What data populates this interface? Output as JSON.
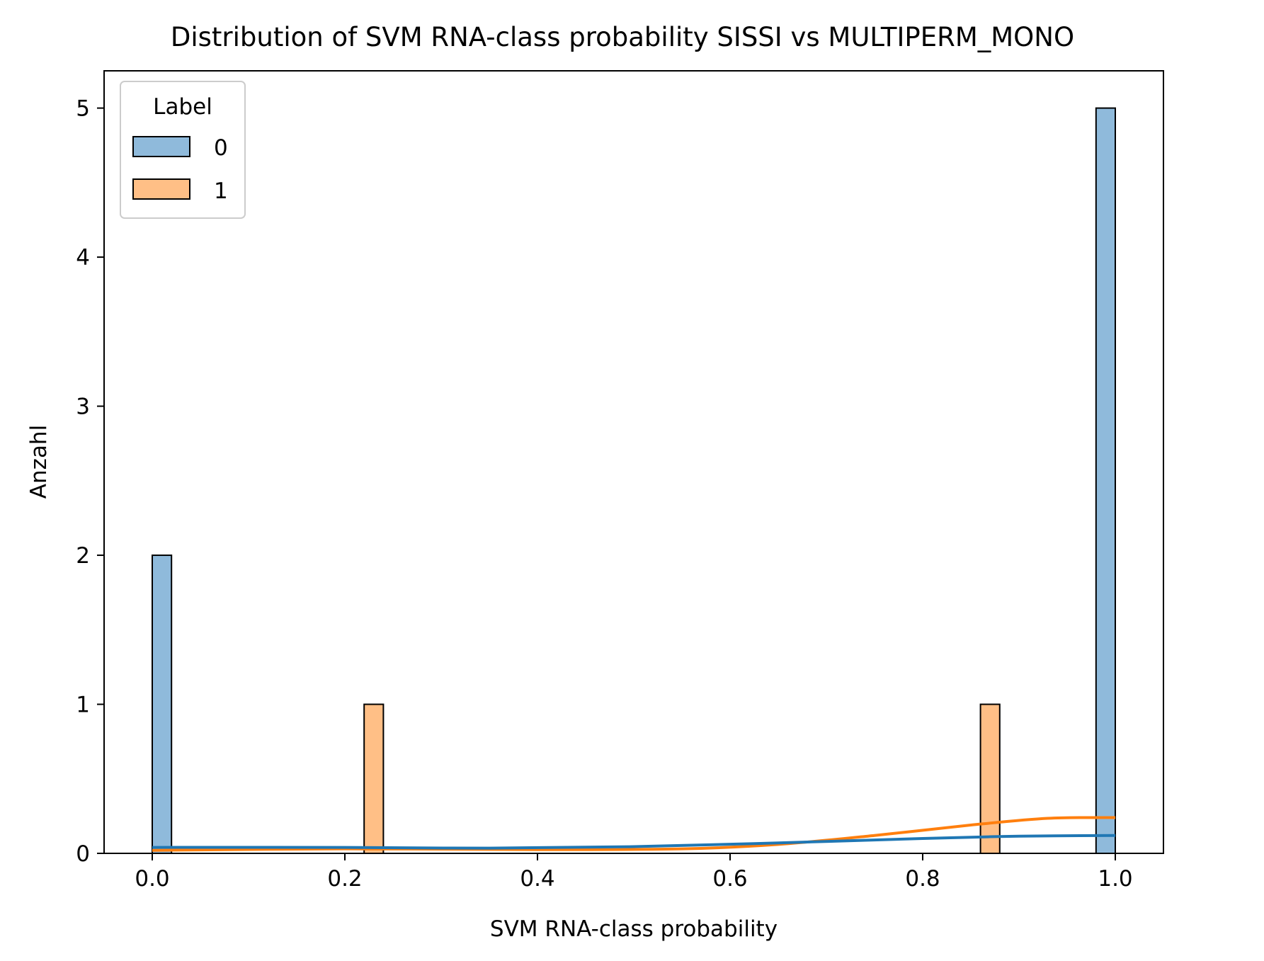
{
  "chart_data": {
    "type": "bar",
    "title": "Distribution of SVM RNA-class probability SISSI vs MULTIPERM_MONO",
    "xlabel": "SVM RNA-class probability",
    "ylabel": "Anzahl",
    "xlim": [
      -0.05,
      1.05
    ],
    "ylim": [
      0,
      5.25
    ],
    "xticks": [
      0.0,
      0.2,
      0.4,
      0.6,
      0.8,
      1.0
    ],
    "xtick_labels": [
      "0.0",
      "0.2",
      "0.4",
      "0.6",
      "0.8",
      "1.0"
    ],
    "yticks": [
      0,
      1,
      2,
      3,
      4,
      5
    ],
    "ytick_labels": [
      "0",
      "1",
      "2",
      "3",
      "4",
      "5"
    ],
    "bin_width": 0.02,
    "grid": false,
    "legend": {
      "title": "Label",
      "position": "top-left"
    },
    "series": [
      {
        "name": "0",
        "color": "#1f77b4",
        "fill": "#8fbadb",
        "bars": [
          {
            "x_start": 0.0,
            "count": 2
          },
          {
            "x_start": 0.98,
            "count": 5
          }
        ],
        "kde": [
          [
            0.0,
            0.04
          ],
          [
            0.2,
            0.04
          ],
          [
            0.35,
            0.035
          ],
          [
            0.5,
            0.045
          ],
          [
            0.65,
            0.07
          ],
          [
            0.8,
            0.1
          ],
          [
            0.9,
            0.115
          ],
          [
            1.0,
            0.12
          ]
        ]
      },
      {
        "name": "1",
        "color": "#ff7f0e",
        "fill": "#ffbf86",
        "bars": [
          {
            "x_start": 0.22,
            "count": 1
          },
          {
            "x_start": 0.86,
            "count": 1
          }
        ],
        "kde": [
          [
            0.0,
            0.02
          ],
          [
            0.2,
            0.03
          ],
          [
            0.4,
            0.025
          ],
          [
            0.55,
            0.03
          ],
          [
            0.65,
            0.06
          ],
          [
            0.75,
            0.12
          ],
          [
            0.85,
            0.19
          ],
          [
            0.93,
            0.235
          ],
          [
            1.0,
            0.24
          ]
        ]
      }
    ],
    "overlap_fill": "#8e9b9f"
  }
}
